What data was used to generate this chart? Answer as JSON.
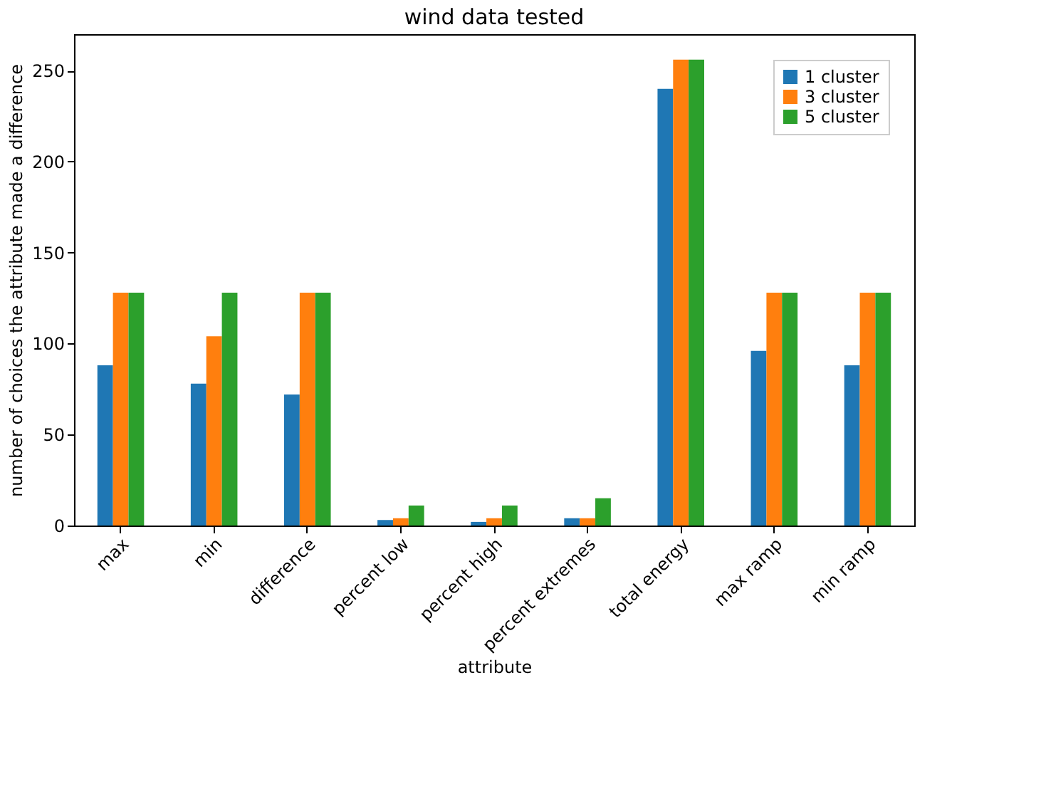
{
  "chart_data": {
    "type": "bar",
    "title": "wind data tested",
    "xlabel": "attribute",
    "ylabel": "number of choices the attribute made a difference",
    "categories": [
      "max",
      "min",
      "difference",
      "percent low",
      "percent high",
      "percent extremes",
      "total energy",
      "max ramp",
      "min ramp"
    ],
    "series": [
      {
        "name": "1 cluster",
        "color": "#1f77b4",
        "values": [
          88,
          78,
          72,
          3,
          2,
          4,
          240,
          96,
          88
        ]
      },
      {
        "name": "3 cluster",
        "color": "#ff7f0e",
        "values": [
          128,
          104,
          128,
          4,
          4,
          4,
          256,
          128,
          128
        ]
      },
      {
        "name": "5 cluster",
        "color": "#2ca02c",
        "values": [
          128,
          128,
          128,
          11,
          11,
          15,
          256,
          128,
          128
        ]
      }
    ],
    "ylim": [
      0,
      270
    ],
    "yticks": [
      0,
      50,
      100,
      150,
      200,
      250
    ],
    "grid": false,
    "legend": "top right"
  }
}
